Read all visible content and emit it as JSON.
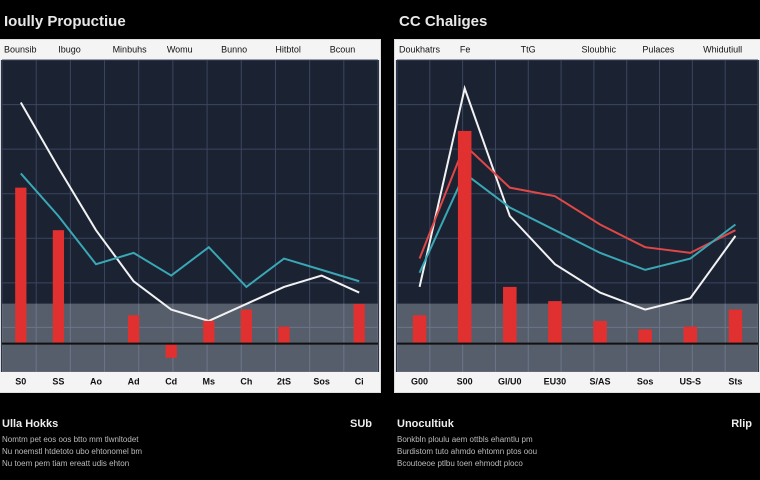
{
  "chart_data": [
    {
      "type": "line",
      "title": "Ioully Propuctiue",
      "header": [
        "Bounsib",
        "Ibugo",
        "Minbuhs",
        "Womu",
        "Bunno",
        "Hitbtol",
        "Bcoun"
      ],
      "categories": [
        "S0",
        "SS",
        "Ao",
        "Ad",
        "Cd",
        "Ms",
        "Ch",
        "2tS",
        "Sos",
        "Ci"
      ],
      "ylim": [
        -10,
        100
      ],
      "series": [
        {
          "type": "line",
          "color": "#f2f2f2",
          "values": [
            85,
            62,
            40,
            22,
            12,
            8,
            14,
            20,
            24,
            18
          ]
        },
        {
          "type": "line",
          "color": "#3aa7b5",
          "values": [
            60,
            45,
            28,
            32,
            24,
            34,
            20,
            30,
            26,
            22
          ]
        },
        {
          "type": "bar",
          "color": "#e03030",
          "values": [
            55,
            40,
            null,
            10,
            -5,
            8,
            12,
            6,
            null,
            14
          ]
        }
      ],
      "footer": {
        "heading": "Ulla Hokks",
        "value": "SUb",
        "lines": [
          "Nomtm pet eos oos btto mm tlwnltodet",
          "Nu noemstl htdetoto ubo ehtonomel bm",
          "Nu toem pem tiam ereatt udis ehton"
        ]
      }
    },
    {
      "type": "line",
      "title": "CC Chaliges",
      "header": [
        "Doukhatrs",
        "Fe",
        "TtG",
        "Sloubhic",
        "Pulaces",
        "Whidutiull"
      ],
      "categories": [
        "G00",
        "S00",
        "Gl/U0",
        "EU30",
        "S/AS",
        "Sos",
        "US-S",
        "Sts"
      ],
      "ylim": [
        -10,
        100
      ],
      "series": [
        {
          "type": "line",
          "color": "#f2f2f2",
          "values": [
            20,
            90,
            45,
            28,
            18,
            12,
            16,
            38
          ]
        },
        {
          "type": "line",
          "color": "#e04848",
          "values": [
            30,
            70,
            55,
            52,
            42,
            34,
            32,
            40
          ]
        },
        {
          "type": "line",
          "color": "#3aa7b5",
          "values": [
            25,
            60,
            48,
            40,
            32,
            26,
            30,
            42
          ]
        },
        {
          "type": "bar",
          "color": "#e03030",
          "values": [
            10,
            75,
            20,
            15,
            8,
            5,
            6,
            12
          ]
        }
      ],
      "footer": {
        "heading": "Unocultiuk",
        "value": "Rlip",
        "lines": [
          "Bonkbln ploulu aem ottbls ehamtlu pm",
          "Burdistom tuto ahmdo ehtomn ptos oou",
          "Bcoutoeoe ptlbu toen ehmodt ploco"
        ]
      }
    }
  ]
}
